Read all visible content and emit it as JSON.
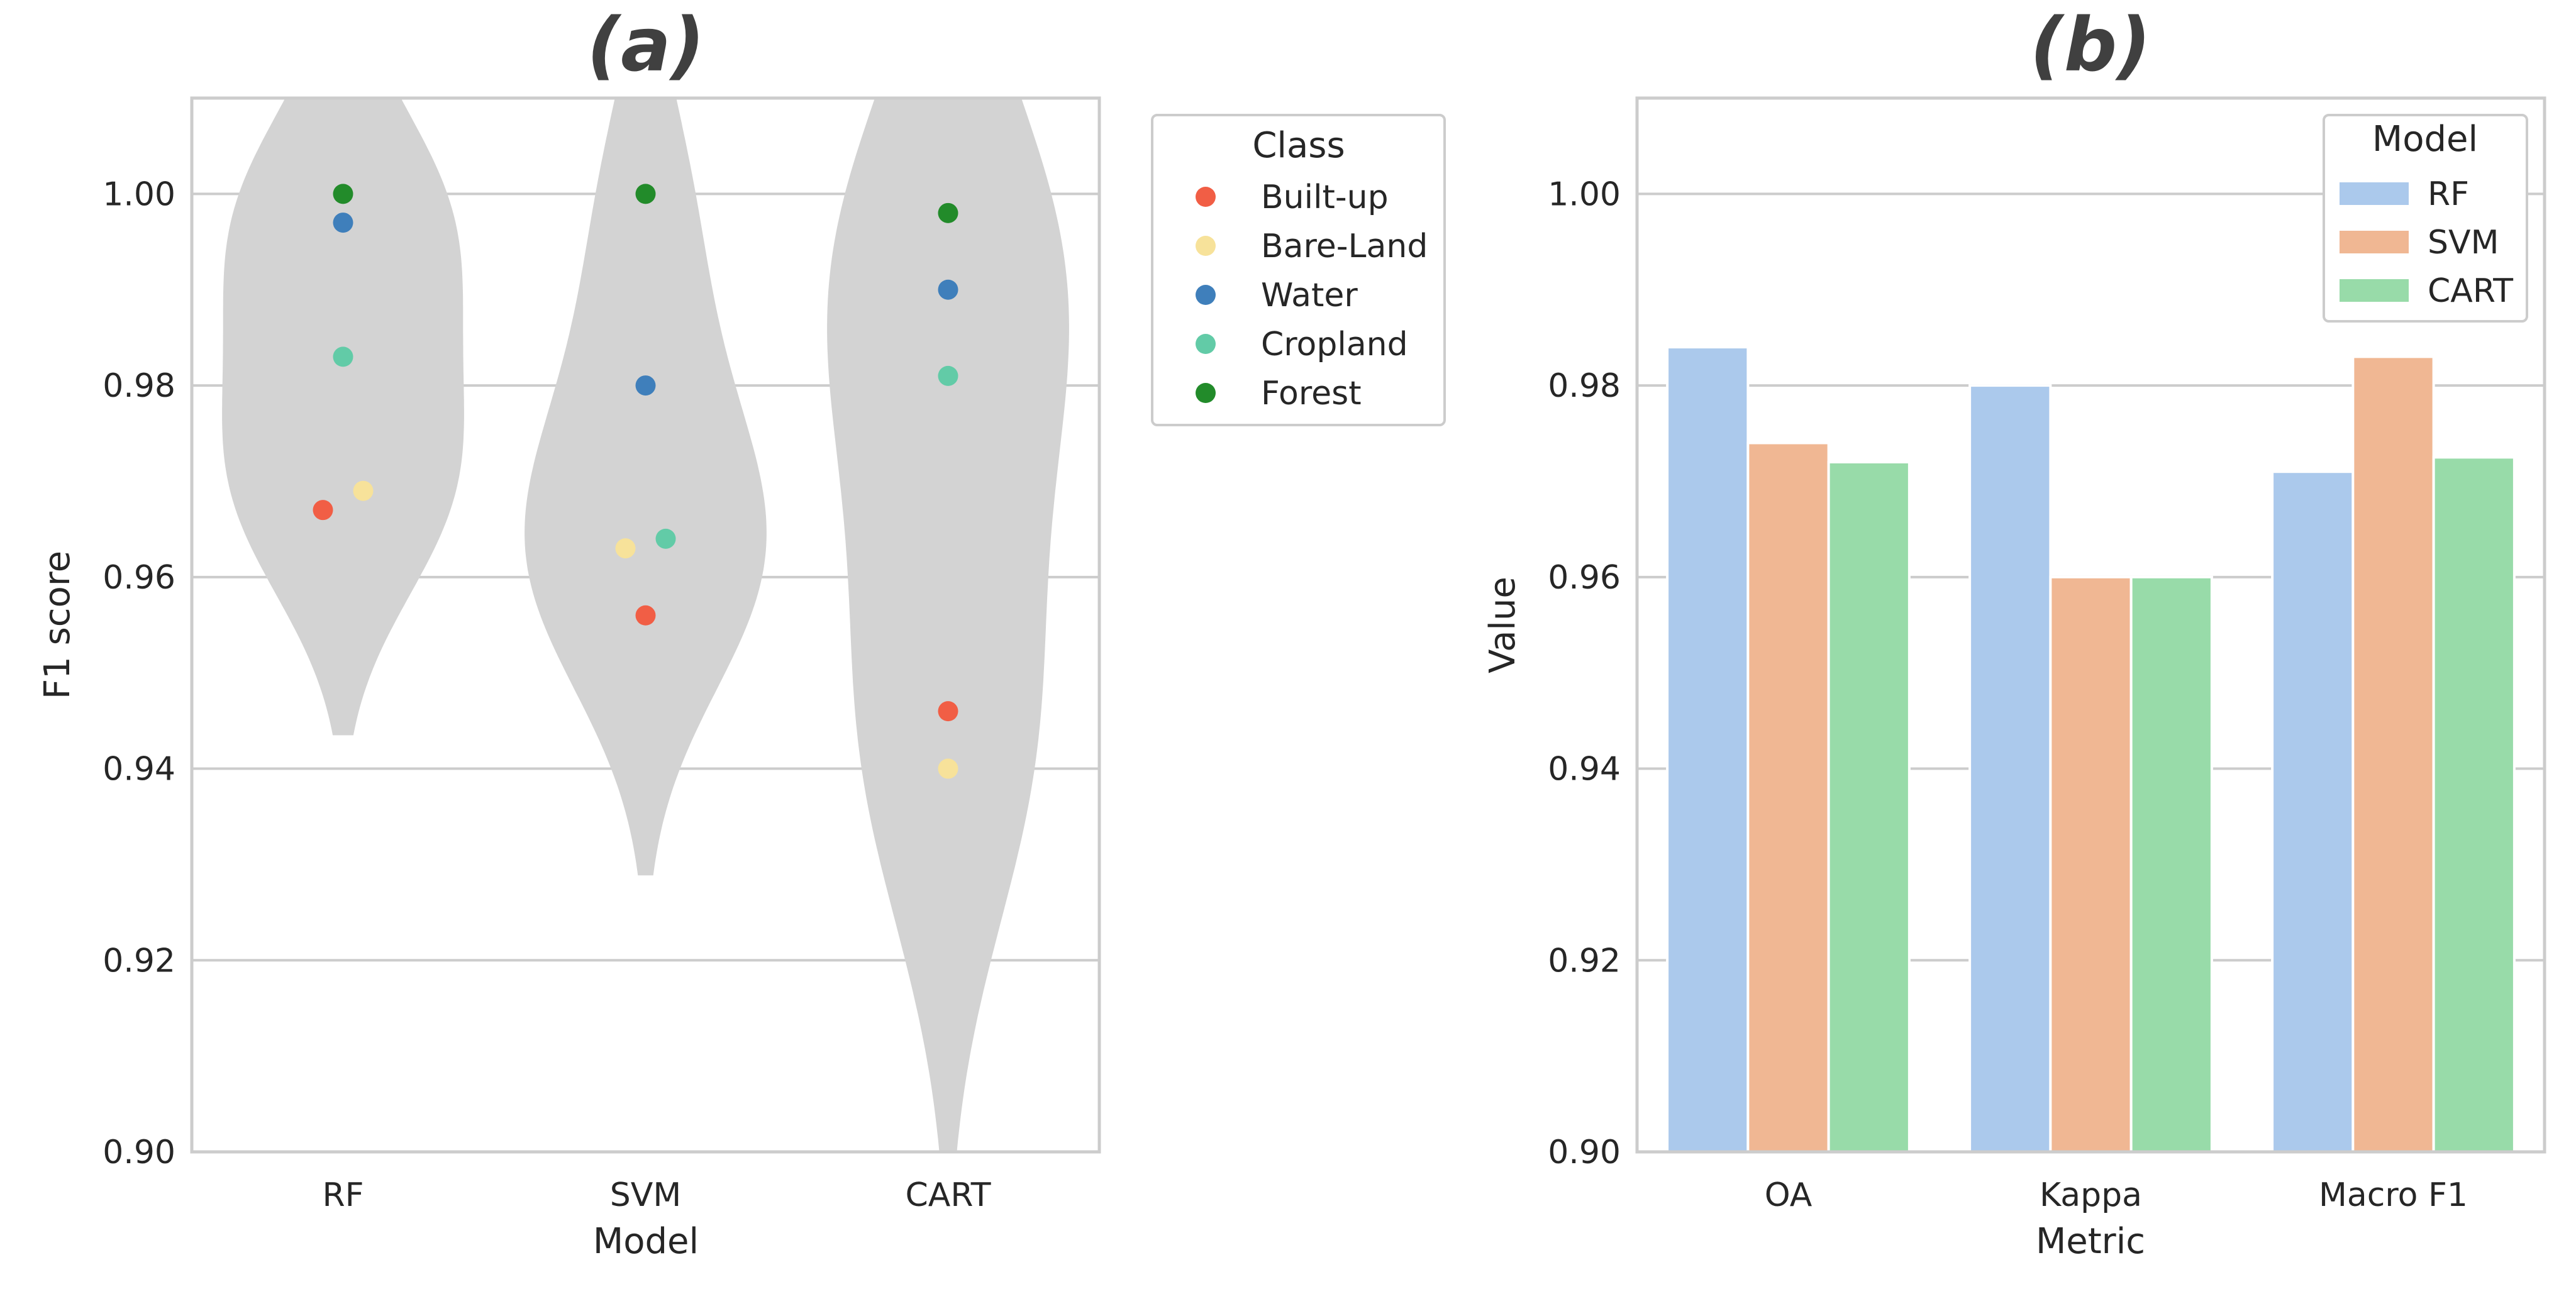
{
  "chart_data": [
    {
      "panel": "(a)",
      "type": "scatter",
      "title": "(a)",
      "xlabel": "Model",
      "ylabel": "F1 score",
      "categories": [
        "RF",
        "SVM",
        "CART"
      ],
      "ylim": [
        0.9,
        1.01
      ],
      "yticks": [
        "0.90",
        "0.92",
        "0.94",
        "0.96",
        "0.98",
        "1.00"
      ],
      "grid": "horizontal",
      "violin_color": "#d3d3d3",
      "legend": {
        "title": "Class",
        "placement": "outside-right"
      },
      "series": [
        {
          "name": "Built-up",
          "color": "#f15e45",
          "values": [
            0.967,
            0.956,
            0.946
          ]
        },
        {
          "name": "Bare-Land",
          "color": "#f7e29a",
          "values": [
            0.969,
            0.963,
            0.94
          ]
        },
        {
          "name": "Water",
          "color": "#3f7fbb",
          "values": [
            0.997,
            0.98,
            0.99
          ]
        },
        {
          "name": "Cropland",
          "color": "#62cba7",
          "values": [
            0.983,
            0.964,
            0.981
          ]
        },
        {
          "name": "Forest",
          "color": "#228b2a",
          "values": [
            1.0,
            1.0,
            0.998
          ]
        }
      ]
    },
    {
      "panel": "(b)",
      "type": "bar",
      "title": "(b)",
      "xlabel": "Metric",
      "ylabel": "Value",
      "categories": [
        "OA",
        "Kappa",
        "Macro F1"
      ],
      "ylim": [
        0.9,
        1.01
      ],
      "yticks": [
        "0.90",
        "0.92",
        "0.94",
        "0.96",
        "0.98",
        "1.00"
      ],
      "grid": "horizontal",
      "legend": {
        "title": "Model",
        "placement": "top-right"
      },
      "series": [
        {
          "name": "RF",
          "color": "#abc9ec",
          "values": [
            0.984,
            0.98,
            0.971
          ]
        },
        {
          "name": "SVM",
          "color": "#f0b793",
          "values": [
            0.974,
            0.96,
            0.983
          ]
        },
        {
          "name": "CART",
          "color": "#98dba9",
          "values": [
            0.972,
            0.96,
            0.9725
          ]
        }
      ]
    }
  ]
}
